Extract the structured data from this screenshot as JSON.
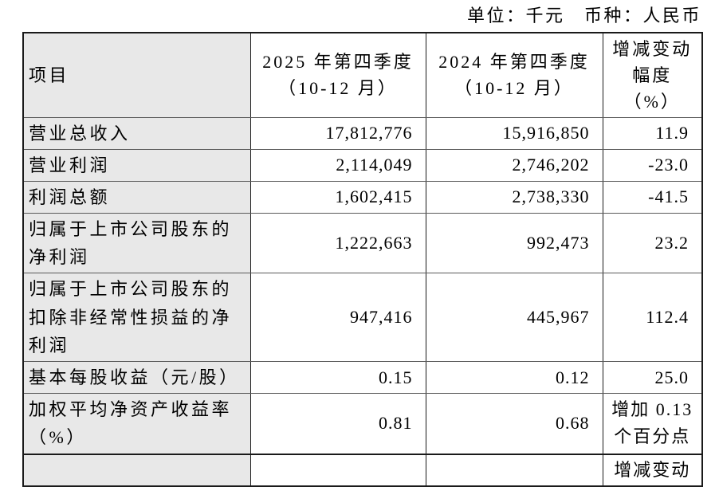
{
  "meta": {
    "unit_label": "单位：千元　币种：人民币"
  },
  "table": {
    "header": {
      "item": "项目",
      "q2025": "2025 年第四季度\n（10-12 月）",
      "q2024": "2024 年第四季度\n（10-12 月）",
      "change": "增减变动\n幅度\n（%）"
    },
    "rows": [
      {
        "item": "营业总收入",
        "q2025": "17,812,776",
        "q2024": "15,916,850",
        "change": "11.9"
      },
      {
        "item": "营业利润",
        "q2025": "2,114,049",
        "q2024": "2,746,202",
        "change": "-23.0"
      },
      {
        "item": "利润总额",
        "q2025": "1,602,415",
        "q2024": "2,738,330",
        "change": "-41.5"
      },
      {
        "item": "归属于上市公司股东的\n净利润",
        "q2025": "1,222,663",
        "q2024": "992,473",
        "change": "23.2"
      },
      {
        "item": "归属于上市公司股东的\n扣除非经常性损益的净\n利润",
        "q2025": "947,416",
        "q2024": "445,967",
        "change": "112.4"
      },
      {
        "item": "基本每股收益（元/股）",
        "q2025": "0.15",
        "q2024": "0.12",
        "change": "25.0"
      },
      {
        "item": "加权平均净资产收益率\n（%）",
        "q2025": "0.81",
        "q2024": "0.68",
        "change": "增加 0.13\n个百分点"
      }
    ],
    "partial_row": {
      "change": "增减变动"
    }
  },
  "colors": {
    "row_label_bg": "#e8e8e8",
    "border_dark": "#1a1a1a",
    "border_inner": "#5a5a5a",
    "text": "#000000",
    "background": "#ffffff"
  }
}
